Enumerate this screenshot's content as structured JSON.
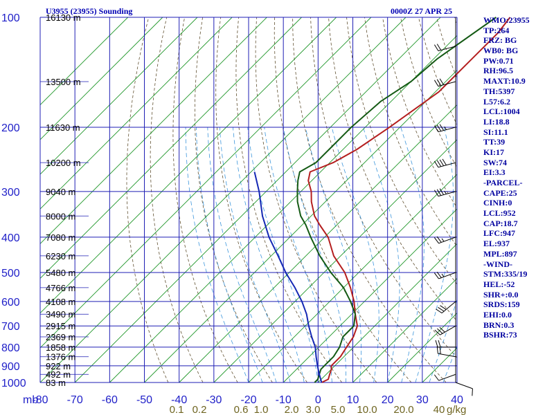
{
  "title_left": "U3955 (23955) Sounding",
  "title_right": "0000Z 27 APR 25",
  "chart_data": {
    "type": "skew-t",
    "pressure_unit_label": "mb",
    "pressure_levels": [
      100,
      200,
      300,
      400,
      500,
      600,
      700,
      800,
      900,
      1000
    ],
    "pressure_range": [
      100,
      1000
    ],
    "temperature_ticks": [
      -80,
      -70,
      -60,
      -50,
      -40,
      -30,
      -20,
      -10,
      0,
      10,
      20,
      30,
      40
    ],
    "temperature_range_at_surface": [
      -80,
      40
    ],
    "mixing_ratio_labels": [
      "0.1",
      "0.2",
      "0.6",
      "1.0",
      "2.0",
      "3.0",
      "5.0",
      "10.0",
      "20.0",
      "40"
    ],
    "mixing_ratio_unit": "g/kg",
    "height_labels": [
      {
        "p": 100,
        "text": "16130 m"
      },
      {
        "p": 150,
        "text": "13500 m"
      },
      {
        "p": 200,
        "text": "11630 m"
      },
      {
        "p": 250,
        "text": "10200 m"
      },
      {
        "p": 300,
        "text": "9040 m"
      },
      {
        "p": 350,
        "text": "8000 m"
      },
      {
        "p": 400,
        "text": "7080 m"
      },
      {
        "p": 450,
        "text": "6230 m"
      },
      {
        "p": 500,
        "text": "5480 m"
      },
      {
        "p": 550,
        "text": "4766 m"
      },
      {
        "p": 600,
        "text": "4108 m"
      },
      {
        "p": 650,
        "text": "3490 m"
      },
      {
        "p": 700,
        "text": "2915 m"
      },
      {
        "p": 750,
        "text": "2369 m"
      },
      {
        "p": 800,
        "text": "1858 m"
      },
      {
        "p": 850,
        "text": "1376 m"
      },
      {
        "p": 900,
        "text": "922 m"
      },
      {
        "p": 950,
        "text": "492 m"
      },
      {
        "p": 1000,
        "text": "83 m"
      }
    ],
    "series": [
      {
        "name": "",
        "kind": "temperature",
        "color": "#b41e1e",
        "points": [
          [
            1000,
            1
          ],
          [
            980,
            2
          ],
          [
            950,
            1
          ],
          [
            920,
            0
          ],
          [
            900,
            -1
          ],
          [
            850,
            -1
          ],
          [
            800,
            -2
          ],
          [
            750,
            -3
          ],
          [
            700,
            -5
          ],
          [
            650,
            -9
          ],
          [
            600,
            -13
          ],
          [
            550,
            -18
          ],
          [
            500,
            -24
          ],
          [
            450,
            -32
          ],
          [
            400,
            -39
          ],
          [
            370,
            -45
          ],
          [
            350,
            -49
          ],
          [
            320,
            -54
          ],
          [
            300,
            -57
          ],
          [
            280,
            -61
          ],
          [
            265,
            -63
          ],
          [
            250,
            -59
          ],
          [
            230,
            -56
          ],
          [
            200,
            -53
          ],
          [
            160,
            -49
          ],
          [
            150,
            -49
          ],
          [
            130,
            -49
          ],
          [
            110,
            -49
          ],
          [
            100,
            -50
          ]
        ]
      },
      {
        "name": "",
        "kind": "dewpoint",
        "color": "#145a14",
        "points": [
          [
            1000,
            -1
          ],
          [
            980,
            -1
          ],
          [
            950,
            -2
          ],
          [
            920,
            -3
          ],
          [
            900,
            -3
          ],
          [
            850,
            -3
          ],
          [
            800,
            -4
          ],
          [
            750,
            -6
          ],
          [
            700,
            -6
          ],
          [
            650,
            -9
          ],
          [
            600,
            -14
          ],
          [
            550,
            -20
          ],
          [
            500,
            -28
          ],
          [
            450,
            -36
          ],
          [
            400,
            -44
          ],
          [
            370,
            -49
          ],
          [
            350,
            -53
          ],
          [
            320,
            -58
          ],
          [
            300,
            -61
          ],
          [
            280,
            -64
          ],
          [
            265,
            -66
          ],
          [
            250,
            -64
          ],
          [
            230,
            -64
          ],
          [
            200,
            -64
          ],
          [
            170,
            -63
          ],
          [
            150,
            -60
          ],
          [
            130,
            -59
          ],
          [
            100,
            -54
          ]
        ]
      },
      {
        "name": "",
        "kind": "parcel",
        "color": "#1428b4",
        "points": [
          [
            1000,
            1
          ],
          [
            950,
            -2
          ],
          [
            900,
            -5
          ],
          [
            850,
            -8
          ],
          [
            800,
            -11
          ],
          [
            750,
            -15
          ],
          [
            700,
            -19
          ],
          [
            650,
            -23
          ],
          [
            600,
            -28
          ],
          [
            550,
            -34
          ],
          [
            500,
            -41
          ],
          [
            450,
            -48
          ],
          [
            400,
            -56
          ],
          [
            350,
            -64
          ],
          [
            300,
            -72
          ],
          [
            265,
            -79
          ]
        ]
      }
    ],
    "wind_barbs": [
      {
        "p": 1000,
        "direction": 110,
        "speed_kt": 10
      },
      {
        "p": 950,
        "direction": 250,
        "speed_kt": 10
      },
      {
        "p": 850,
        "direction": 280,
        "speed_kt": 20
      },
      {
        "p": 800,
        "direction": 270,
        "speed_kt": 20
      },
      {
        "p": 700,
        "direction": 240,
        "speed_kt": 30
      },
      {
        "p": 600,
        "direction": 230,
        "speed_kt": 30
      },
      {
        "p": 500,
        "direction": 250,
        "speed_kt": 25
      },
      {
        "p": 400,
        "direction": 250,
        "speed_kt": 25
      },
      {
        "p": 300,
        "direction": 255,
        "speed_kt": 35
      },
      {
        "p": 250,
        "direction": 255,
        "speed_kt": 40
      },
      {
        "p": 200,
        "direction": 255,
        "speed_kt": 35
      },
      {
        "p": 150,
        "direction": 255,
        "speed_kt": 30
      },
      {
        "p": 120,
        "direction": 255,
        "speed_kt": 20
      }
    ]
  },
  "indices": [
    "WMO:23955",
    "TP:264",
    "FRZ: BG",
    "WB0: BG",
    "PW:0.71",
    "RH:96.5",
    "MAXT:10.9",
    "TH:5397",
    "L57:6.2",
    "LCL:1004",
    "LI:18.8",
    "SI:11.1",
    "TT:39",
    "KI:17",
    "SW:74",
    "EI:3.3",
    "-PARCEL-",
    "CAPE:25",
    "CINH:0",
    "LCL:952",
    "CAP:18.7",
    "LFC:947",
    "EL:937",
    "MPL:897",
    "-WIND-",
    "STM:335/19",
    "HEL:-52",
    "SHR+:0.0",
    "SRDS:159",
    "EHI:0.0",
    "BRN:0.3",
    "BSHR:73"
  ],
  "colors": {
    "grid": "#1e1eb4",
    "isotherm": "#1e9628",
    "dry_adiabat": "#605030",
    "moist_adiabat": "#3c96dc",
    "mixing_ratio_label": "#6e6420"
  }
}
